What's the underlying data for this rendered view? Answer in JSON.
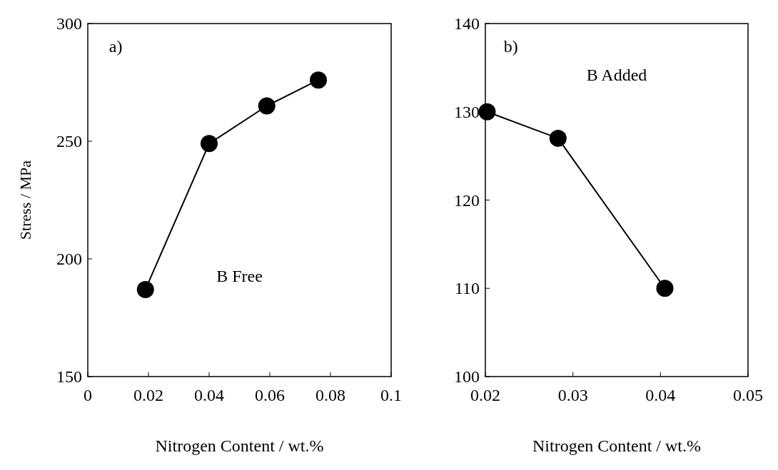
{
  "chart_data": [
    {
      "type": "line",
      "xlabel": "Nitrogen Content / wt.%",
      "ylabel": "Stress / MPa",
      "annotations": [
        "a)",
        "B Free"
      ],
      "x": [
        0.019,
        0.04,
        0.059,
        0.076
      ],
      "series": [
        {
          "color": "#000000",
          "values": [
            187,
            249,
            265,
            276
          ]
        }
      ],
      "xlim": [
        0,
        0.1
      ],
      "xticks": [
        0,
        0.02,
        0.04,
        0.06,
        0.08,
        0.1
      ],
      "ylim": [
        150,
        300
      ],
      "yticks": [
        150,
        200,
        250,
        300
      ],
      "marker": "circle",
      "line_style": "solid"
    },
    {
      "type": "line",
      "xlabel": "Nitrogen Content / wt.%",
      "annotations": [
        "b)",
        "B Added"
      ],
      "x": [
        0.0202,
        0.0283,
        0.0405
      ],
      "series": [
        {
          "color": "#000000",
          "values": [
            130,
            127,
            110
          ]
        }
      ],
      "xlim": [
        0.02,
        0.05
      ],
      "xticks": [
        0.02,
        0.03,
        0.04,
        0.05
      ],
      "ylim": [
        100,
        140
      ],
      "yticks": [
        100,
        110,
        120,
        130,
        140
      ],
      "marker": "circle",
      "line_style": "solid"
    }
  ]
}
